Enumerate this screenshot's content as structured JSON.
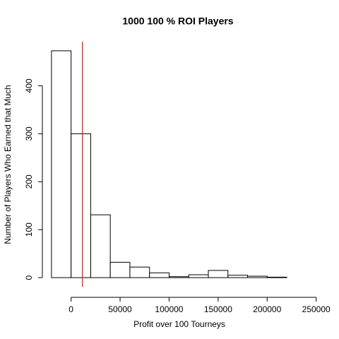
{
  "chart_data": {
    "type": "histogram",
    "title": "1000 100 % ROI Players",
    "x_label": "Profit over 100 Tourneys",
    "y_label": "Number of Players Who Earned that Much",
    "bins": [
      -20000,
      0,
      20000,
      40000,
      60000,
      80000,
      100000,
      120000,
      140000,
      160000,
      180000,
      200000,
      220000,
      240000
    ],
    "counts": [
      473,
      300,
      131,
      32,
      22,
      10,
      2,
      6,
      15,
      5,
      3,
      1,
      0
    ],
    "color": "#ffffff",
    "edge_color": "#000000",
    "vline": 11600,
    "vline_color": "#b22222",
    "xlim": [
      -30000,
      256000
    ],
    "ylim": [
      -19,
      492
    ],
    "xticks": [
      0,
      50000,
      100000,
      150000,
      200000,
      250000
    ],
    "yticks": [
      0,
      100,
      200,
      300,
      400
    ],
    "grid": false
  }
}
